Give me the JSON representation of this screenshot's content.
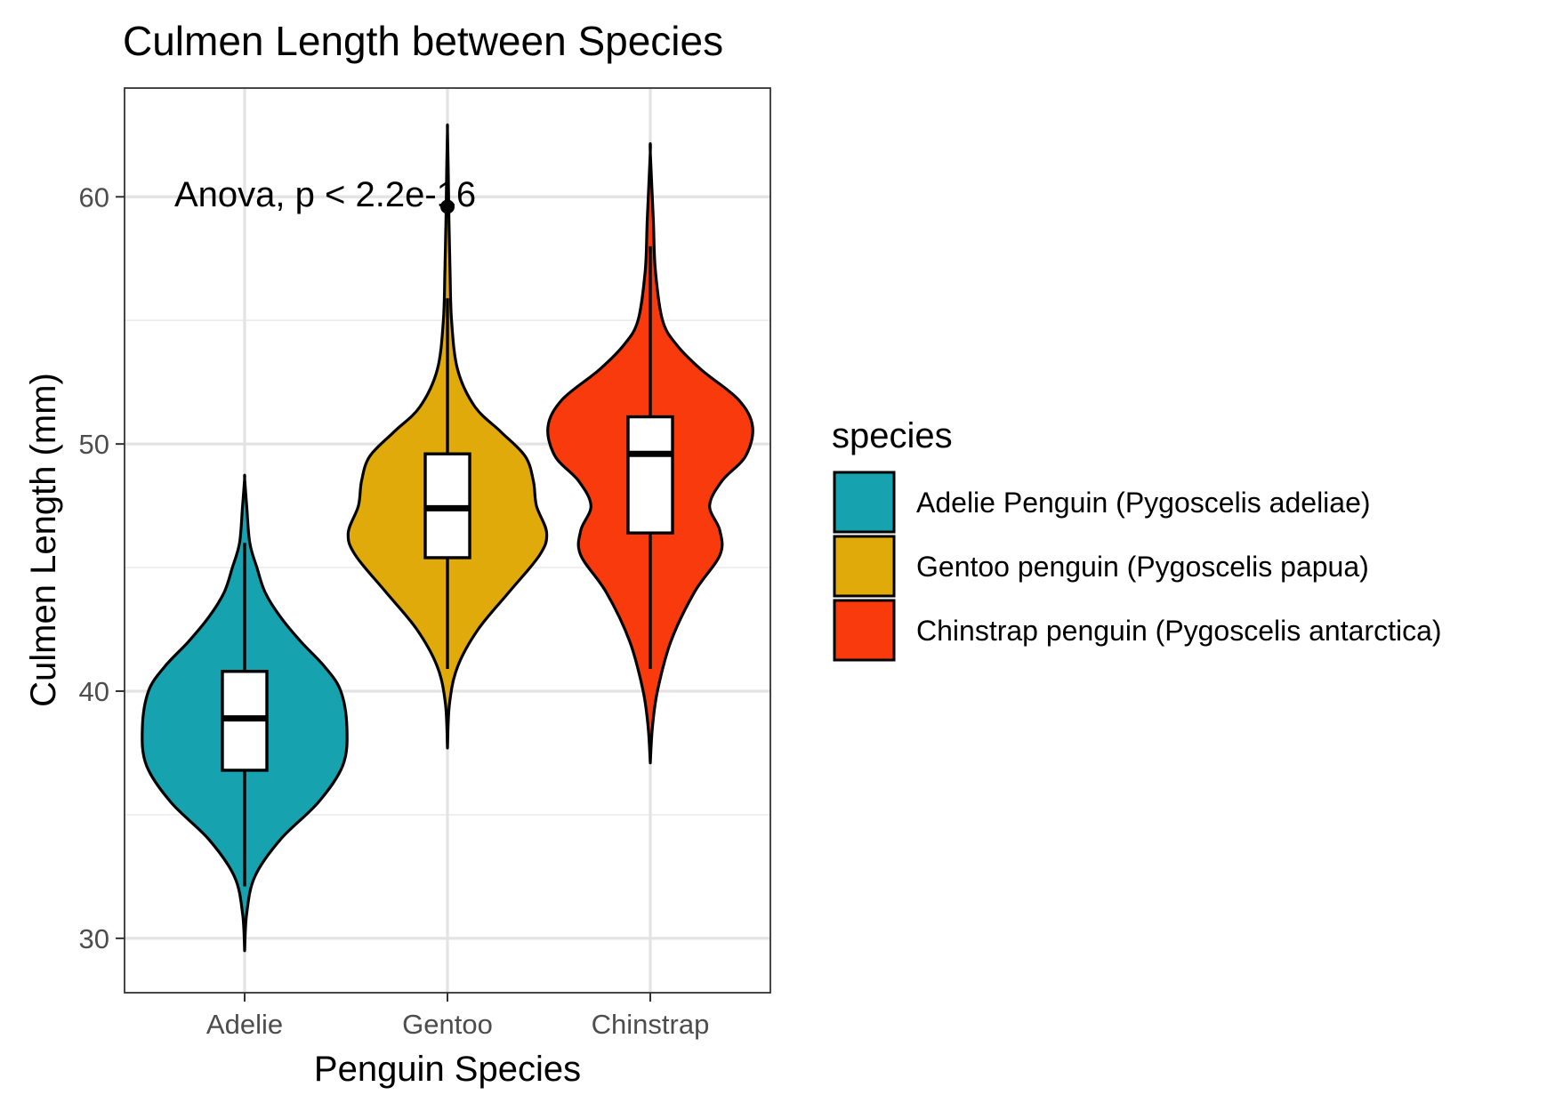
{
  "chart_data": {
    "type": "violin",
    "title": "Culmen Length between Species",
    "xlabel": "Penguin Species",
    "ylabel": "Culmen Length (mm)",
    "ylim": [
      27.8,
      64.4
    ],
    "yticks": [
      30,
      40,
      50,
      60
    ],
    "grid": true,
    "annotation": "Anova, p < 2.2e-16",
    "categories": [
      "Adelie",
      "Gentoo",
      "Chinstrap"
    ],
    "legend": {
      "title": "species",
      "position": "right",
      "entries": [
        {
          "label": "Adelie Penguin (Pygoscelis adeliae)",
          "color": "#17A2B0"
        },
        {
          "label": "Gentoo penguin (Pygoscelis papua)",
          "color": "#DFAA0A"
        },
        {
          "label": "Chinstrap penguin (Pygoscelis antarctica)",
          "color": "#F93A0D"
        }
      ]
    },
    "series": [
      {
        "category": "Adelie",
        "color": "#17A2B0",
        "violin_range": [
          29.5,
          48.6
        ],
        "density_profile": [
          [
            29.5,
            0.0
          ],
          [
            31.0,
            0.02
          ],
          [
            32.5,
            0.1
          ],
          [
            34.0,
            0.35
          ],
          [
            35.5,
            0.72
          ],
          [
            37.0,
            0.96
          ],
          [
            38.5,
            1.0
          ],
          [
            40.0,
            0.94
          ],
          [
            41.0,
            0.78
          ],
          [
            42.0,
            0.55
          ],
          [
            43.0,
            0.35
          ],
          [
            44.0,
            0.2
          ],
          [
            45.0,
            0.12
          ],
          [
            46.0,
            0.05
          ],
          [
            47.5,
            0.02
          ],
          [
            48.6,
            0.0
          ]
        ],
        "box": {
          "q1": 36.8,
          "median": 38.9,
          "q3": 40.8,
          "whisker_low": 32.1,
          "whisker_high": 46.0
        },
        "outliers": []
      },
      {
        "category": "Gentoo",
        "color": "#DFAA0A",
        "violin_range": [
          37.7,
          62.7
        ],
        "density_profile": [
          [
            37.7,
            0.0
          ],
          [
            39.5,
            0.02
          ],
          [
            41.0,
            0.1
          ],
          [
            42.5,
            0.3
          ],
          [
            44.0,
            0.6
          ],
          [
            45.5,
            0.9
          ],
          [
            46.4,
            0.97
          ],
          [
            47.5,
            0.87
          ],
          [
            48.5,
            0.84
          ],
          [
            49.5,
            0.76
          ],
          [
            50.5,
            0.52
          ],
          [
            51.5,
            0.27
          ],
          [
            53.0,
            0.1
          ],
          [
            55.0,
            0.04
          ],
          [
            57.0,
            0.025
          ],
          [
            59.0,
            0.015
          ],
          [
            61.0,
            0.008
          ],
          [
            62.7,
            0.0
          ]
        ],
        "box": {
          "q1": 45.4,
          "median": 47.4,
          "q3": 49.6,
          "whisker_low": 40.9,
          "whisker_high": 55.9
        },
        "outliers": [
          59.6
        ]
      },
      {
        "category": "Chinstrap",
        "color": "#F93A0D",
        "violin_range": [
          37.1,
          61.8
        ],
        "density_profile": [
          [
            37.1,
            0.0
          ],
          [
            38.5,
            0.02
          ],
          [
            40.0,
            0.07
          ],
          [
            42.0,
            0.2
          ],
          [
            44.0,
            0.43
          ],
          [
            45.5,
            0.68
          ],
          [
            46.5,
            0.68
          ],
          [
            47.5,
            0.58
          ],
          [
            48.5,
            0.7
          ],
          [
            49.5,
            0.93
          ],
          [
            50.7,
            1.0
          ],
          [
            51.8,
            0.86
          ],
          [
            53.0,
            0.5
          ],
          [
            54.0,
            0.26
          ],
          [
            55.0,
            0.12
          ],
          [
            57.0,
            0.05
          ],
          [
            59.0,
            0.03
          ],
          [
            61.8,
            0.0
          ]
        ],
        "box": {
          "q1": 46.4,
          "median": 49.6,
          "q3": 51.1,
          "whisker_low": 40.9,
          "whisker_high": 58.0
        },
        "outliers": []
      }
    ]
  }
}
